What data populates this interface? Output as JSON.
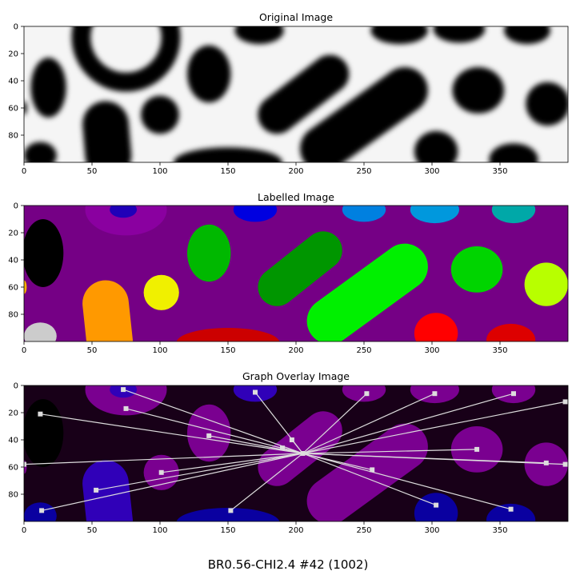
{
  "figure": {
    "suptitle": "BR0.56-CHI2.4 #42 (1002)"
  },
  "colors": {
    "labelled_background": "#750085",
    "overlay_background": "#180018",
    "overlay_blob": "#7a0090",
    "overlay_blob_blue": "#3000b8",
    "overlay_deep_blue": "#0a00a0",
    "overlay_black": "#000000",
    "graph_line": "#dddddd"
  },
  "chart_data": [
    {
      "type": "heatmap",
      "title": "Original Image",
      "xlim": [
        0,
        400
      ],
      "ylim": [
        100,
        0
      ],
      "xticks": [
        0,
        50,
        100,
        150,
        200,
        250,
        300,
        350
      ],
      "yticks": [
        0,
        20,
        40,
        60,
        80
      ],
      "cmap": "gray",
      "blobs": [
        {
          "kind": "ellipse",
          "cx": 18,
          "cy": 45,
          "rx": 13,
          "ry": 22
        },
        {
          "kind": "ring",
          "cx": 75,
          "cy": 8,
          "rx": 33,
          "ry": 33
        },
        {
          "kind": "ellipse",
          "cx": 173,
          "cy": 3,
          "rx": 18,
          "ry": 10
        },
        {
          "kind": "ellipse",
          "cx": 276,
          "cy": 3,
          "rx": 21,
          "ry": 10
        },
        {
          "kind": "ellipse",
          "cx": 320,
          "cy": 2,
          "rx": 19,
          "ry": 10
        },
        {
          "kind": "ellipse",
          "cx": 370,
          "cy": 3,
          "rx": 17,
          "ry": 10
        },
        {
          "kind": "ellipse",
          "cx": 136,
          "cy": 35,
          "rx": 16,
          "ry": 21
        },
        {
          "kind": "capsule",
          "x1": 186,
          "y1": 65,
          "x2": 225,
          "y2": 35,
          "r": 14
        },
        {
          "kind": "ellipse",
          "cx": 100,
          "cy": 65,
          "rx": 14,
          "ry": 14
        },
        {
          "kind": "ellipse",
          "cx": 334,
          "cy": 47,
          "rx": 19,
          "ry": 17
        },
        {
          "kind": "ellipse",
          "cx": 385,
          "cy": 57,
          "rx": 16,
          "ry": 16
        },
        {
          "kind": "capsule",
          "x1": 220,
          "y1": 90,
          "x2": 280,
          "y2": 47,
          "r": 17
        },
        {
          "kind": "capsule",
          "x1": 60,
          "y1": 72,
          "x2": 62,
          "y2": 95,
          "r": 17
        },
        {
          "kind": "ellipse",
          "cx": 150,
          "cy": 100,
          "rx": 40,
          "ry": 11
        },
        {
          "kind": "ellipse",
          "cx": 303,
          "cy": 92,
          "rx": 16,
          "ry": 15
        },
        {
          "kind": "ellipse",
          "cx": 360,
          "cy": 98,
          "rx": 18,
          "ry": 12
        },
        {
          "kind": "ellipse",
          "cx": 12,
          "cy": 95,
          "rx": 12,
          "ry": 10
        },
        {
          "kind": "ellipse",
          "cx": 0,
          "cy": 60,
          "rx": 2,
          "ry": 5
        }
      ]
    },
    {
      "type": "heatmap",
      "title": "Labelled Image",
      "xlim": [
        0,
        400
      ],
      "ylim": [
        100,
        0
      ],
      "xticks": [
        0,
        50,
        100,
        150,
        200,
        250,
        300,
        350
      ],
      "yticks": [
        0,
        20,
        40,
        60,
        80
      ],
      "cmap": "nipy_spectral",
      "regions": [
        {
          "kind": "ellipse",
          "cx": 75,
          "cy": 3,
          "rx": 30,
          "ry": 19,
          "color": "#8a00a0"
        },
        {
          "kind": "ellipse",
          "cx": 14,
          "cy": 35,
          "rx": 15,
          "ry": 25,
          "color": "#000000"
        },
        {
          "kind": "ellipse",
          "cx": 73,
          "cy": 3,
          "rx": 10,
          "ry": 6,
          "color": "#1f00b8"
        },
        {
          "kind": "ellipse",
          "cx": 170,
          "cy": 3,
          "rx": 16,
          "ry": 9,
          "color": "#0000e0"
        },
        {
          "kind": "ellipse",
          "cx": 250,
          "cy": 3,
          "rx": 16,
          "ry": 9,
          "color": "#0080e0"
        },
        {
          "kind": "ellipse",
          "cx": 302,
          "cy": 3,
          "rx": 18,
          "ry": 10,
          "color": "#0098dd"
        },
        {
          "kind": "ellipse",
          "cx": 360,
          "cy": 3,
          "rx": 16,
          "ry": 10,
          "color": "#00a8a8"
        },
        {
          "kind": "ellipse",
          "cx": 136,
          "cy": 35,
          "rx": 16,
          "ry": 21,
          "color": "#00b800"
        },
        {
          "kind": "capsule",
          "x1": 186,
          "y1": 60,
          "x2": 220,
          "y2": 33,
          "r": 14,
          "color": "#009600"
        },
        {
          "kind": "ellipse",
          "cx": 101,
          "cy": 64,
          "rx": 13,
          "ry": 13,
          "color": "#f0f000"
        },
        {
          "kind": "ellipse",
          "cx": 333,
          "cy": 47,
          "rx": 19,
          "ry": 17,
          "color": "#00d400"
        },
        {
          "kind": "ellipse",
          "cx": 384,
          "cy": 58,
          "rx": 16,
          "ry": 16,
          "color": "#b8ff00"
        },
        {
          "kind": "capsule",
          "x1": 225,
          "y1": 85,
          "x2": 280,
          "y2": 45,
          "r": 17,
          "color": "#00f000"
        },
        {
          "kind": "capsule",
          "x1": 60,
          "y1": 72,
          "x2": 63,
          "y2": 100,
          "r": 17,
          "color": "#ff9900"
        },
        {
          "kind": "ellipse",
          "cx": 150,
          "cy": 101,
          "rx": 38,
          "ry": 11,
          "color": "#cc0000"
        },
        {
          "kind": "ellipse",
          "cx": 303,
          "cy": 94,
          "rx": 16,
          "ry": 15,
          "color": "#ff0000"
        },
        {
          "kind": "ellipse",
          "cx": 358,
          "cy": 99,
          "rx": 18,
          "ry": 12,
          "color": "#dd0000"
        },
        {
          "kind": "ellipse",
          "cx": 12,
          "cy": 96,
          "rx": 12,
          "ry": 10,
          "color": "#cccccc"
        },
        {
          "kind": "ellipse",
          "cx": 0,
          "cy": 60,
          "rx": 2,
          "ry": 5,
          "color": "#ffb000"
        }
      ]
    },
    {
      "type": "graph-overlay",
      "title": "Graph Overlay Image",
      "xlim": [
        0,
        400
      ],
      "ylim": [
        100,
        0
      ],
      "xticks": [
        0,
        50,
        100,
        150,
        200,
        250,
        300,
        350
      ],
      "yticks": [
        0,
        20,
        40,
        60,
        80
      ],
      "hub": {
        "x": 205,
        "y": 50
      },
      "edges_from": [
        {
          "x": 73,
          "y": 3
        },
        {
          "x": 75,
          "y": 17
        },
        {
          "x": 170,
          "y": 5
        },
        {
          "x": 252,
          "y": 6
        },
        {
          "x": 302,
          "y": 6
        },
        {
          "x": 360,
          "y": 6
        },
        {
          "x": 398,
          "y": 12
        },
        {
          "x": 12,
          "y": 21
        },
        {
          "x": 136,
          "y": 37
        },
        {
          "x": 197,
          "y": 40
        },
        {
          "x": 190,
          "y": 46
        },
        {
          "x": 333,
          "y": 47
        },
        {
          "x": 384,
          "y": 57
        },
        {
          "x": 398,
          "y": 58
        },
        {
          "x": 0,
          "y": 58
        },
        {
          "x": 101,
          "y": 64
        },
        {
          "x": 256,
          "y": 62
        },
        {
          "x": 53,
          "y": 77
        },
        {
          "x": 13,
          "y": 92
        },
        {
          "x": 152,
          "y": 92
        },
        {
          "x": 303,
          "y": 88
        },
        {
          "x": 358,
          "y": 91
        }
      ]
    }
  ]
}
